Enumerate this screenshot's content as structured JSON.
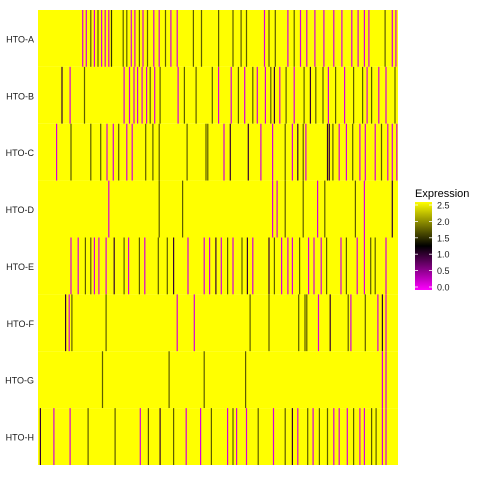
{
  "chart_data": {
    "type": "heatmap",
    "title": "",
    "xlabel": "",
    "ylabel": "",
    "rows": [
      "HTO-A",
      "HTO-B",
      "HTO-C",
      "HTO-D",
      "HTO-E",
      "HTO-F",
      "HTO-G",
      "HTO-H"
    ],
    "n_columns": 400,
    "baseline_value": 2.5,
    "value_range": [
      0.0,
      2.5
    ],
    "cells": {
      "HTO-A": [
        [
          49,
          0.2
        ],
        [
          53,
          0.2
        ],
        [
          58,
          1.7
        ],
        [
          62,
          0.2
        ],
        [
          66,
          1.7
        ],
        [
          70,
          0.2
        ],
        [
          74,
          0.2
        ],
        [
          78,
          0.2
        ],
        [
          81,
          1.5
        ],
        [
          94,
          1.7
        ],
        [
          98,
          1.7
        ],
        [
          103,
          0.2
        ],
        [
          107,
          0.2
        ],
        [
          112,
          1.7
        ],
        [
          116,
          0.2
        ],
        [
          121,
          1.7
        ],
        [
          128,
          0.2
        ],
        [
          134,
          0.2
        ],
        [
          141,
          1.7
        ],
        [
          147,
          0.2
        ],
        [
          154,
          0.2
        ],
        [
          172,
          1.7
        ],
        [
          181,
          1.7
        ],
        [
          200,
          1.7
        ],
        [
          216,
          1.7
        ],
        [
          225,
          1.7
        ],
        [
          231,
          1.7
        ],
        [
          251,
          0.2
        ],
        [
          256,
          1.7
        ],
        [
          263,
          1.7
        ],
        [
          277,
          0.2
        ],
        [
          284,
          1.7
        ],
        [
          291,
          0.2
        ],
        [
          298,
          0.2
        ],
        [
          307,
          0.2
        ],
        [
          317,
          0.2
        ],
        [
          328,
          0.2
        ],
        [
          337,
          0.2
        ],
        [
          348,
          0.2
        ],
        [
          355,
          0.2
        ],
        [
          362,
          0.2
        ],
        [
          367,
          0.2
        ],
        [
          385,
          1.7
        ],
        [
          393,
          0.2
        ],
        [
          397,
          0.2
        ]
      ],
      "HTO-B": [
        [
          26,
          1.0
        ],
        [
          35,
          0.2
        ],
        [
          51,
          1.7
        ],
        [
          95,
          0.2
        ],
        [
          101,
          0.2
        ],
        [
          106,
          0.2
        ],
        [
          110,
          0.2
        ],
        [
          115,
          0.2
        ],
        [
          120,
          0.2
        ],
        [
          124,
          1.7
        ],
        [
          129,
          0.2
        ],
        [
          135,
          1.7
        ],
        [
          155,
          0.2
        ],
        [
          162,
          1.7
        ],
        [
          175,
          1.7
        ],
        [
          193,
          1.7
        ],
        [
          200,
          0.2
        ],
        [
          214,
          0.2
        ],
        [
          222,
          1.7
        ],
        [
          229,
          0.2
        ],
        [
          238,
          1.7
        ],
        [
          243,
          0.2
        ],
        [
          252,
          0.2
        ],
        [
          258,
          1.7
        ],
        [
          262,
          1.0
        ],
        [
          268,
          0.2
        ],
        [
          275,
          1.7
        ],
        [
          284,
          0.2
        ],
        [
          295,
          1.7
        ],
        [
          302,
          1.0
        ],
        [
          308,
          1.7
        ],
        [
          316,
          1.7
        ],
        [
          322,
          0.2
        ],
        [
          330,
          1.7
        ],
        [
          340,
          0.2
        ],
        [
          350,
          1.7
        ],
        [
          360,
          1.7
        ],
        [
          365,
          0.2
        ],
        [
          370,
          1.7
        ],
        [
          378,
          0.2
        ],
        [
          386,
          0.2
        ],
        [
          396,
          1.7
        ]
      ],
      "HTO-C": [
        [
          20,
          0.2
        ],
        [
          36,
          1.7
        ],
        [
          58,
          1.7
        ],
        [
          69,
          1.7
        ],
        [
          76,
          0.2
        ],
        [
          83,
          0.2
        ],
        [
          89,
          1.7
        ],
        [
          98,
          0.2
        ],
        [
          104,
          0.2
        ],
        [
          119,
          1.7
        ],
        [
          127,
          1.7
        ],
        [
          134,
          1.7
        ],
        [
          165,
          1.7
        ],
        [
          186,
          1.7
        ],
        [
          188,
          1.7
        ],
        [
          206,
          0.2
        ],
        [
          213,
          1.0
        ],
        [
          233,
          1.0
        ],
        [
          247,
          0.2
        ],
        [
          260,
          0.2
        ],
        [
          274,
          1.7
        ],
        [
          282,
          0.2
        ],
        [
          288,
          1.0
        ],
        [
          294,
          1.7
        ],
        [
          297,
          0.2
        ],
        [
          321,
          1.0
        ],
        [
          323,
          1.0
        ],
        [
          327,
          1.7
        ],
        [
          334,
          0.2
        ],
        [
          342,
          0.2
        ],
        [
          349,
          1.7
        ],
        [
          357,
          0.2
        ],
        [
          363,
          0.2
        ],
        [
          374,
          0.2
        ],
        [
          381,
          1.7
        ],
        [
          388,
          0.2
        ],
        [
          393,
          0.2
        ],
        [
          398,
          0.2
        ]
      ],
      "HTO-D": [
        [
          78,
          0.2
        ],
        [
          134,
          1.7
        ],
        [
          160,
          1.7
        ],
        [
          260,
          0.2
        ],
        [
          265,
          0.2
        ],
        [
          274,
          1.7
        ],
        [
          294,
          1.7
        ],
        [
          310,
          0.2
        ],
        [
          318,
          1.7
        ],
        [
          352,
          1.7
        ],
        [
          362,
          0.2
        ],
        [
          393,
          1.0
        ]
      ],
      "HTO-E": [
        [
          36,
          0.2
        ],
        [
          44,
          0.2
        ],
        [
          52,
          1.7
        ],
        [
          58,
          1.7
        ],
        [
          62,
          0.2
        ],
        [
          67,
          0.2
        ],
        [
          75,
          0.2
        ],
        [
          84,
          1.0
        ],
        [
          95,
          1.7
        ],
        [
          100,
          0.2
        ],
        [
          112,
          1.7
        ],
        [
          118,
          0.2
        ],
        [
          133,
          1.7
        ],
        [
          143,
          1.7
        ],
        [
          150,
          1.0
        ],
        [
          166,
          0.2
        ],
        [
          184,
          0.2
        ],
        [
          190,
          0.2
        ],
        [
          197,
          1.0
        ],
        [
          203,
          0.2
        ],
        [
          210,
          1.7
        ],
        [
          216,
          0.2
        ],
        [
          226,
          1.7
        ],
        [
          232,
          1.0
        ],
        [
          238,
          0.2
        ],
        [
          256,
          1.0
        ],
        [
          262,
          1.7
        ],
        [
          270,
          0.2
        ],
        [
          277,
          0.2
        ],
        [
          282,
          0.2
        ],
        [
          290,
          1.7
        ],
        [
          300,
          0.2
        ],
        [
          306,
          0.2
        ],
        [
          314,
          0.2
        ],
        [
          320,
          1.7
        ],
        [
          336,
          0.2
        ],
        [
          342,
          1.7
        ],
        [
          354,
          0.2
        ],
        [
          362,
          0.2
        ],
        [
          369,
          1.7
        ],
        [
          374,
          1.7
        ],
        [
          386,
          0.2
        ]
      ],
      "HTO-F": [
        [
          30,
          1.0
        ],
        [
          34,
          0.2
        ],
        [
          37,
          1.7
        ],
        [
          75,
          1.7
        ],
        [
          154,
          0.2
        ],
        [
          173,
          0.2
        ],
        [
          235,
          1.7
        ],
        [
          256,
          1.7
        ],
        [
          289,
          1.7
        ],
        [
          296,
          1.7
        ],
        [
          298,
          1.7
        ],
        [
          311,
          0.2
        ],
        [
          324,
          1.0
        ],
        [
          344,
          1.7
        ],
        [
          347,
          0.2
        ],
        [
          363,
          1.7
        ],
        [
          377,
          0.2
        ],
        [
          382,
          1.0
        ],
        [
          386,
          0.2
        ]
      ],
      "HTO-G": [
        [
          71,
          1.7
        ],
        [
          145,
          1.7
        ],
        [
          184,
          1.7
        ],
        [
          230,
          1.7
        ],
        [
          382,
          0.2
        ],
        [
          386,
          0.2
        ]
      ],
      "HTO-H": [
        [
          2,
          1.0
        ],
        [
          17,
          0.2
        ],
        [
          35,
          0.2
        ],
        [
          55,
          1.7
        ],
        [
          85,
          1.7
        ],
        [
          113,
          0.2
        ],
        [
          122,
          1.7
        ],
        [
          135,
          1.0
        ],
        [
          150,
          1.7
        ],
        [
          164,
          0.2
        ],
        [
          180,
          0.2
        ],
        [
          192,
          1.7
        ],
        [
          210,
          0.2
        ],
        [
          216,
          1.7
        ],
        [
          220,
          0.2
        ],
        [
          231,
          0.2
        ],
        [
          244,
          1.7
        ],
        [
          261,
          0.2
        ],
        [
          274,
          1.7
        ],
        [
          282,
          1.0
        ],
        [
          288,
          0.2
        ],
        [
          299,
          1.7
        ],
        [
          305,
          0.2
        ],
        [
          312,
          1.7
        ],
        [
          321,
          1.7
        ],
        [
          328,
          0.2
        ],
        [
          334,
          0.2
        ],
        [
          343,
          0.2
        ],
        [
          350,
          1.7
        ],
        [
          357,
          0.2
        ],
        [
          362,
          0.2
        ],
        [
          370,
          1.7
        ],
        [
          375,
          1.7
        ],
        [
          382,
          0.2
        ],
        [
          386,
          0.2
        ]
      ]
    },
    "legend": {
      "title": "Expression",
      "ticks": [
        "2.5",
        "2.0",
        "1.5",
        "1.0",
        "0.5",
        "0.0"
      ],
      "scale_min": 0.0,
      "scale_max": 2.5,
      "position": "right"
    },
    "colors": {
      "high": "#ffff00",
      "mid": "#000000",
      "low": "#ff00ff"
    }
  }
}
